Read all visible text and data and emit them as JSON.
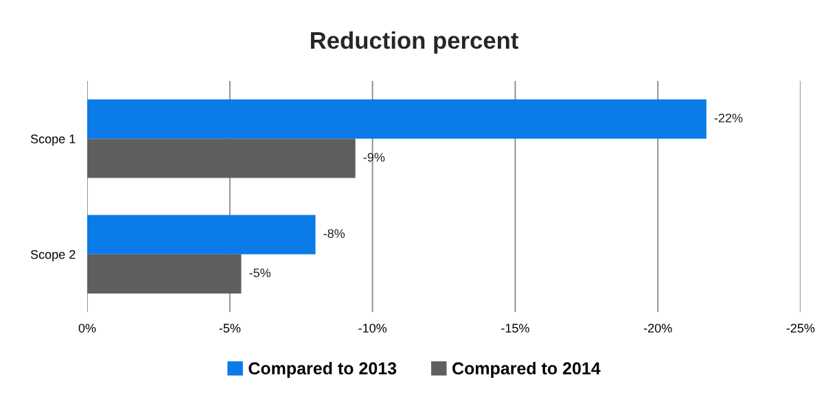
{
  "chart_data": {
    "type": "bar",
    "orientation": "horizontal",
    "title": "Reduction percent",
    "categories": [
      "Scope 1",
      "Scope 2"
    ],
    "series": [
      {
        "name": "Compared to 2013",
        "color": "#0a7be8",
        "values": [
          -21.7,
          -8.0
        ],
        "value_labels": [
          "-22%",
          "-8%"
        ]
      },
      {
        "name": "Compared to 2014",
        "color": "#5f5f5f",
        "values": [
          -9.4,
          -5.4
        ],
        "value_labels": [
          "-9%",
          "-5%"
        ]
      }
    ],
    "xlim": [
      0,
      -25
    ],
    "xticks": [
      {
        "value": 0,
        "label": "0%"
      },
      {
        "value": -5,
        "label": "-5%"
      },
      {
        "value": -10,
        "label": "-10%"
      },
      {
        "value": -15,
        "label": "-15%"
      },
      {
        "value": -20,
        "label": "-20%"
      },
      {
        "value": -25,
        "label": "-25%"
      }
    ],
    "grid": "x",
    "legend": "bottom"
  }
}
